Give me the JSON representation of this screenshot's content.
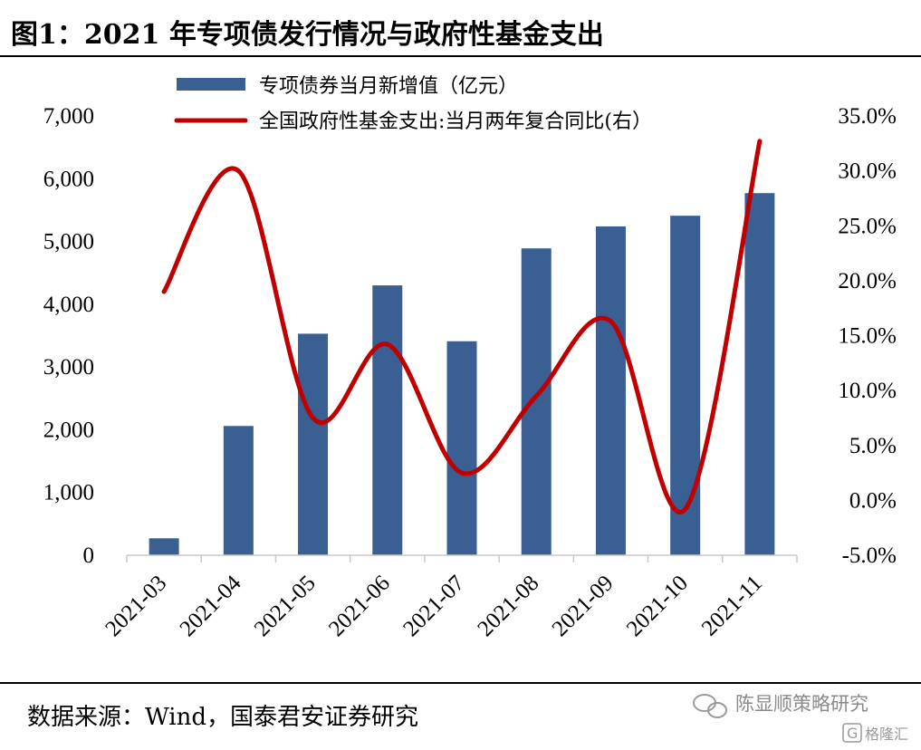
{
  "title": "图1：2021 年专项债发行情况与政府性基金支出",
  "source": "数据来源：Wind，国泰君安证券研究",
  "watermark": {
    "account": "陈显顺策略研究",
    "brand": "格隆汇",
    "brand_mark": "G"
  },
  "colors": {
    "bar": "#3a5f93",
    "line": "#c00000",
    "axis": "#c8c8c8",
    "rule": "#000000"
  },
  "chart_data": {
    "type": "bar",
    "categories": [
      "2021-03",
      "2021-04",
      "2021-05",
      "2021-06",
      "2021-07",
      "2021-08",
      "2021-09",
      "2021-10",
      "2021-11"
    ],
    "series": [
      {
        "name": "专项债券当月新增值（亿元）",
        "type": "bar",
        "axis": "left",
        "values": [
          270,
          2060,
          3530,
          4300,
          3410,
          4890,
          5240,
          5410,
          5770
        ]
      },
      {
        "name": "全国政府性基金支出:当月两年复合同比(右）",
        "type": "line",
        "axis": "right",
        "values": [
          19.0,
          30.0,
          7.5,
          14.2,
          2.5,
          9.5,
          16.3,
          -0.8,
          32.7
        ]
      }
    ],
    "y_left": {
      "min": 0,
      "max": 7000,
      "ticks": [
        0,
        1000,
        2000,
        3000,
        4000,
        5000,
        6000,
        7000
      ],
      "tick_labels": [
        "0",
        "1,000",
        "2,000",
        "3,000",
        "4,000",
        "5,000",
        "6,000",
        "7,000"
      ]
    },
    "y_right": {
      "min": -5,
      "max": 35,
      "ticks": [
        -5,
        0,
        5,
        10,
        15,
        20,
        25,
        30,
        35
      ],
      "tick_labels": [
        "-5.0%",
        "0.0%",
        "5.0%",
        "10.0%",
        "15.0%",
        "20.0%",
        "25.0%",
        "30.0%",
        "35.0%"
      ]
    },
    "xlabel": "",
    "ylabel": "",
    "grid": false,
    "legend_position": "top"
  }
}
